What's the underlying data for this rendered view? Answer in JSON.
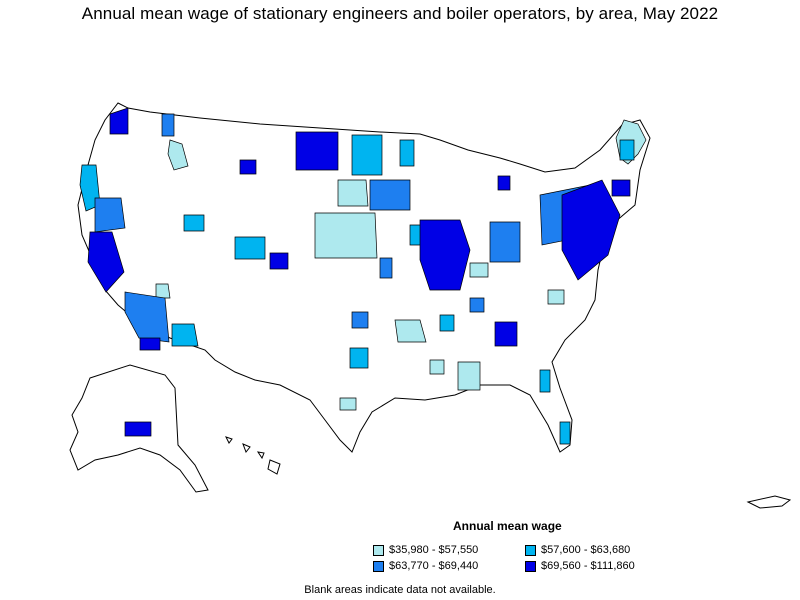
{
  "title": "Annual mean wage of stationary engineers and boiler operators, by area, May 2022",
  "legend": {
    "title": "Annual mean wage",
    "items": [
      {
        "label": "$35,980 - $57,550",
        "color": "#aee9ee"
      },
      {
        "label": "$57,600 - $63,680",
        "color": "#00b4f0"
      },
      {
        "label": "$63,770 - $69,440",
        "color": "#1e7ff0"
      },
      {
        "label": "$69,560 - $111,860",
        "color": "#0000e6"
      }
    ]
  },
  "footnote": "Blank areas indicate data not available.",
  "colors": {
    "no_data": "#ffffff",
    "border": "#000000"
  }
}
